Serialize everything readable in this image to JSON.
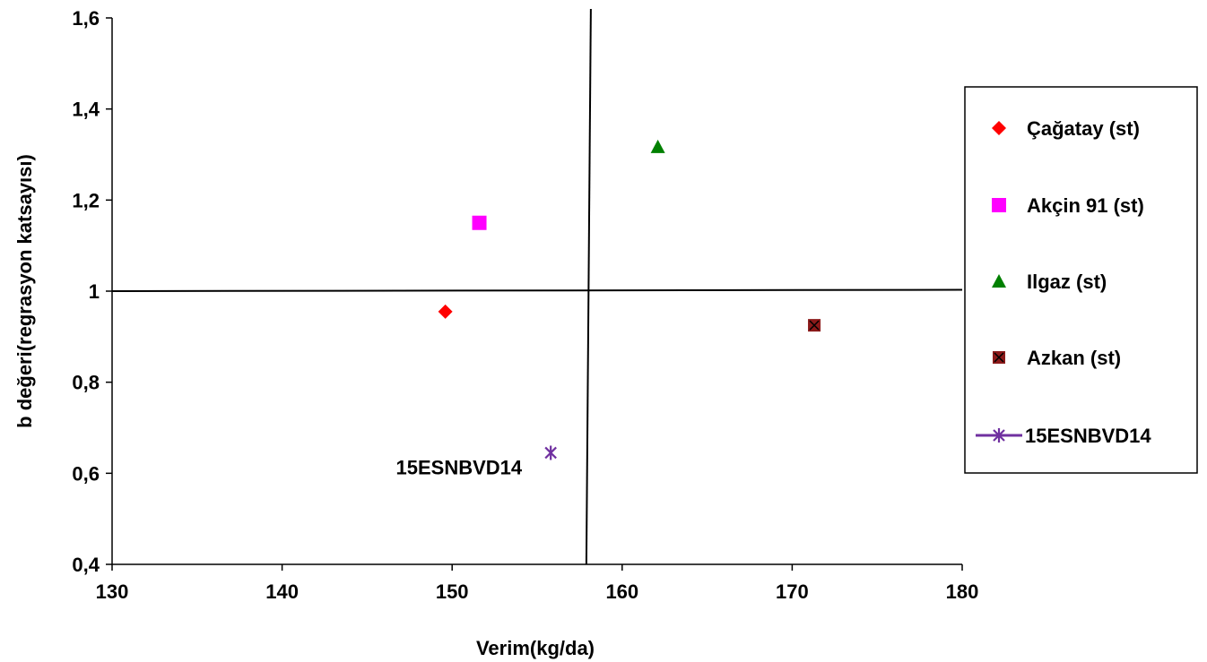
{
  "chart_data": {
    "type": "scatter",
    "title": "",
    "xlabel": "Verim(kg/da)",
    "ylabel": "b değeri(regrasyon katsayısı)",
    "xlim": [
      130,
      180
    ],
    "ylim": [
      0.4,
      1.6
    ],
    "x_ticks": [
      "130",
      "140",
      "150",
      "160",
      "170",
      "180"
    ],
    "y_ticks": [
      "0,4",
      "0,6",
      "0,8",
      "1",
      "1,2",
      "1,4",
      "1,6"
    ],
    "grid": false,
    "legend_position": "right",
    "reference_lines": {
      "x": 158,
      "y": 1.0
    },
    "series": [
      {
        "name": "Çağatay (st)",
        "marker": "diamond",
        "color": "#ff0000",
        "x": 149.6,
        "y": 0.955
      },
      {
        "name": "Akçin 91 (st)",
        "marker": "square",
        "color": "#ff00ff",
        "x": 151.6,
        "y": 1.15
      },
      {
        "name": "Ilgaz (st)",
        "marker": "triangle",
        "color": "#008000",
        "x": 162.1,
        "y": 1.317
      },
      {
        "name": "Azkan (st)",
        "marker": "x-square",
        "color": "#8b1a1a",
        "x": 171.3,
        "y": 0.925
      },
      {
        "name": "15ESNBVD14",
        "marker": "asterisk",
        "color": "#7030a0",
        "x": 155.8,
        "y": 0.645
      }
    ],
    "annotations": [
      {
        "text": "15ESNBVD14",
        "x": 155.8,
        "y": 0.645
      }
    ]
  }
}
